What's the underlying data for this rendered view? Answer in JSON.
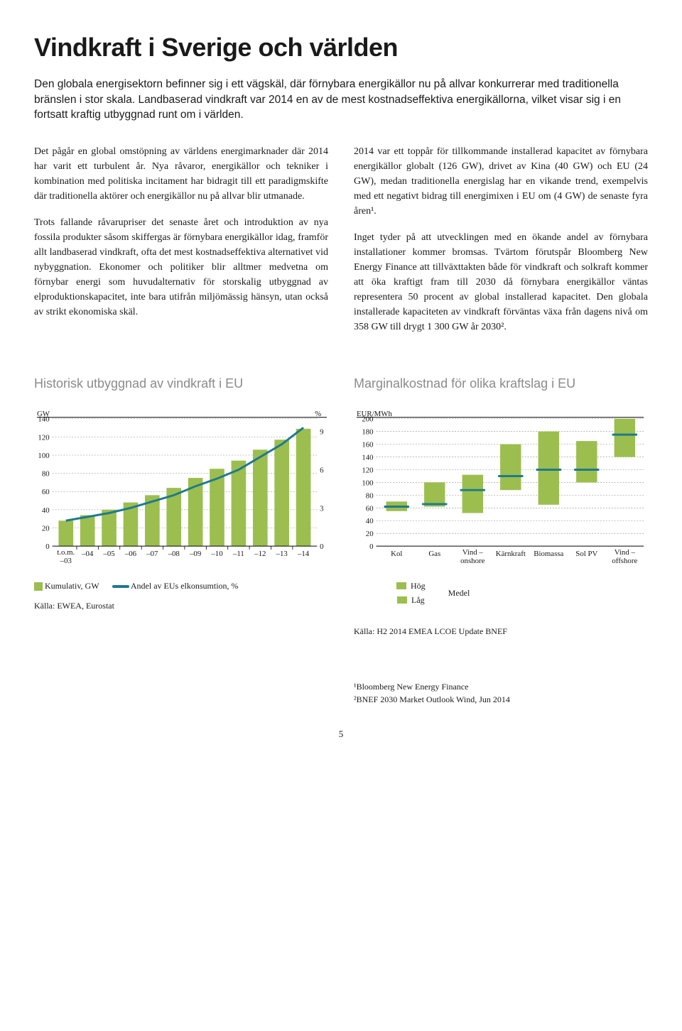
{
  "title": "Vindkraft i Sverige och världen",
  "lede": "Den globala energisektorn befinner sig i ett vägskäl, där förnybara energikällor nu på allvar konkurrerar med traditionella bränslen i stor skala. Landbaserad vindkraft var 2014 en av de mest kostnadseffektiva energikällorna, vilket visar sig i en fortsatt kraftig utbyggnad runt om i världen.",
  "body": {
    "p1": "Det pågår en global omstöpning av världens energimarknader där 2014 har varit ett turbulent år. Nya råvaror, energikällor och tekniker i kombination med politiska incitament har bidragit till ett paradigmskifte där traditionella aktörer och energikällor nu på allvar blir utmanade.",
    "p2": "Trots fallande råvarupriser det senaste året och introduktion av nya fossila produkter såsom skiffergas är förnybara energikällor idag, framför allt landbaserad vindkraft, ofta det mest kostnadseffektiva alternativet vid nybyggnation. Ekonomer och politiker blir alltmer medvetna om förnybar energi som huvudalternativ för storskalig utbyggnad av elproduktionskapacitet, inte bara utifrån miljömässig hänsyn, utan också av strikt ekonomiska skäl.",
    "p3": "2014 var ett toppår för tillkommande installerad kapacitet av förnybara energikällor globalt (126 GW), drivet av Kina (40 GW) och EU (24 GW), medan traditionella energislag har en vikande trend, exempelvis med ett negativt bidrag till energimixen i EU om (4 GW) de senaste fyra åren¹.",
    "p4": "Inget tyder på att utvecklingen med en ökande andel av förnybara installationer kommer bromsas. Tvärtom förutspår Bloomberg New Energy Finance att tillväxttakten både för vindkraft och solkraft kommer att öka kraftigt fram till 2030 då förnybara energikällor väntas representera 50 procent av global installerad kapacitet. Den globala installerade kapaciteten av vindkraft förväntas växa från dagens nivå om 358 GW till drygt 1 300 GW år 2030²."
  },
  "chart1": {
    "title": "Historisk utbyggnad av vindkraft i EU",
    "left_label": "GW",
    "right_label": "%",
    "left_ticks": [
      0,
      20,
      40,
      60,
      80,
      100,
      120,
      140
    ],
    "right_ticks": [
      0,
      3,
      6,
      9
    ],
    "x_labels": [
      "t.o.m. –03",
      "–04",
      "–05",
      "–06",
      "–07",
      "–08",
      "–09",
      "–10",
      "–11",
      "–12",
      "–13",
      "–14"
    ],
    "bars": [
      28,
      34,
      40,
      48,
      56,
      64,
      75,
      85,
      94,
      106,
      117,
      129
    ],
    "line": [
      2.0,
      2.3,
      2.6,
      3.0,
      3.5,
      4.0,
      4.7,
      5.3,
      6.0,
      7.0,
      8.0,
      9.3
    ],
    "bar_color": "#9cbe4f",
    "line_color": "#1f7a8c",
    "grid_color": "#888888",
    "legend": {
      "bar": "Kumulativ, GW",
      "line": "Andel av EUs elkonsumtion, %"
    },
    "source": "Källa: EWEA, Eurostat",
    "ylim_left": [
      0,
      140
    ],
    "ylim_right": [
      0,
      10
    ]
  },
  "chart2": {
    "title": "Marginalkostnad för olika kraftslag i EU",
    "y_label": "EUR/MWh",
    "y_ticks": [
      0,
      20,
      40,
      60,
      80,
      100,
      120,
      140,
      160,
      180,
      200
    ],
    "categories": [
      "Kol",
      "Gas",
      "Vind – onshore",
      "Kärnkraft",
      "Biomassa",
      "Sol PV",
      "Vind – offshore"
    ],
    "ranges": [
      {
        "low": 55,
        "high": 70,
        "median": 62
      },
      {
        "low": 62,
        "high": 100,
        "median": 66
      },
      {
        "low": 52,
        "high": 112,
        "median": 88
      },
      {
        "low": 88,
        "high": 160,
        "median": 110
      },
      {
        "low": 65,
        "high": 180,
        "median": 120
      },
      {
        "low": 100,
        "high": 165,
        "median": 120
      },
      {
        "low": 140,
        "high": 200,
        "median": 175
      }
    ],
    "bar_color": "#9cbe4f",
    "median_color": "#1f7a8c",
    "legend": {
      "high": "Hög",
      "low": "Låg",
      "median": "Medel"
    },
    "source": "Källa: H2 2014 EMEA LCOE Update BNEF",
    "ylim": [
      0,
      200
    ]
  },
  "footnotes": {
    "n1": "¹Bloomberg New Energy Finance",
    "n2": "²BNEF 2030 Market Outlook Wind, Jun 2014"
  },
  "page_number": "5"
}
